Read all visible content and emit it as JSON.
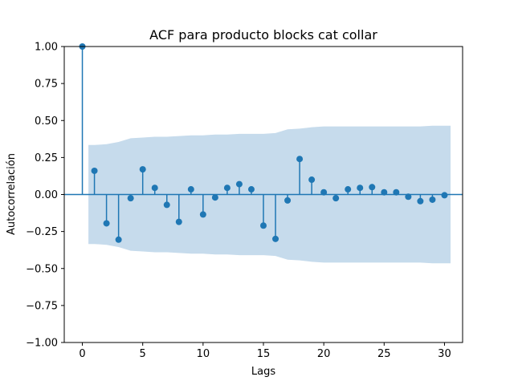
{
  "chart_data": {
    "type": "stem",
    "title": "ACF para producto blocks cat collar",
    "xlabel": "Lags",
    "ylabel": "Autocorrelación",
    "xlim": [
      -1.5,
      31.5
    ],
    "ylim": [
      -1.0,
      1.0
    ],
    "xticks": [
      0,
      5,
      10,
      15,
      20,
      25,
      30
    ],
    "xtick_labels": [
      "0",
      "5",
      "10",
      "15",
      "20",
      "25",
      "30"
    ],
    "yticks": [
      -1.0,
      -0.75,
      -0.5,
      -0.25,
      0.0,
      0.25,
      0.5,
      0.75,
      1.0
    ],
    "ytick_labels": [
      "−1.00",
      "−0.75",
      "−0.50",
      "−0.25",
      "0.00",
      "0.25",
      "0.50",
      "0.75",
      "1.00"
    ],
    "grid": false,
    "lags": [
      0,
      1,
      2,
      3,
      4,
      5,
      6,
      7,
      8,
      9,
      10,
      11,
      12,
      13,
      14,
      15,
      16,
      17,
      18,
      19,
      20,
      21,
      22,
      23,
      24,
      25,
      26,
      27,
      28,
      29,
      30
    ],
    "acf": [
      1.0,
      0.16,
      -0.195,
      -0.305,
      -0.025,
      0.17,
      0.045,
      -0.07,
      -0.185,
      0.035,
      -0.135,
      -0.02,
      0.045,
      0.07,
      0.035,
      -0.21,
      -0.3,
      -0.04,
      0.24,
      0.1,
      0.015,
      -0.025,
      0.035,
      0.045,
      0.05,
      0.015,
      0.015,
      -0.015,
      -0.045,
      -0.035,
      -0.005
    ],
    "confidence_band": {
      "lags": [
        0.5,
        1,
        2,
        3,
        4,
        5,
        6,
        7,
        8,
        9,
        10,
        11,
        12,
        13,
        14,
        15,
        16,
        17,
        18,
        19,
        20,
        21,
        22,
        23,
        24,
        25,
        26,
        27,
        28,
        29,
        30,
        30.5
      ],
      "upper": [
        0.335,
        0.335,
        0.34,
        0.355,
        0.38,
        0.385,
        0.39,
        0.39,
        0.395,
        0.4,
        0.4,
        0.405,
        0.405,
        0.41,
        0.41,
        0.41,
        0.415,
        0.44,
        0.445,
        0.455,
        0.46,
        0.46,
        0.46,
        0.46,
        0.46,
        0.46,
        0.46,
        0.46,
        0.46,
        0.465,
        0.465,
        0.465
      ]
    },
    "colors": {
      "stem": "#1f77b4",
      "band": "#c6dbec",
      "zero_line": "#1f77b4"
    }
  }
}
